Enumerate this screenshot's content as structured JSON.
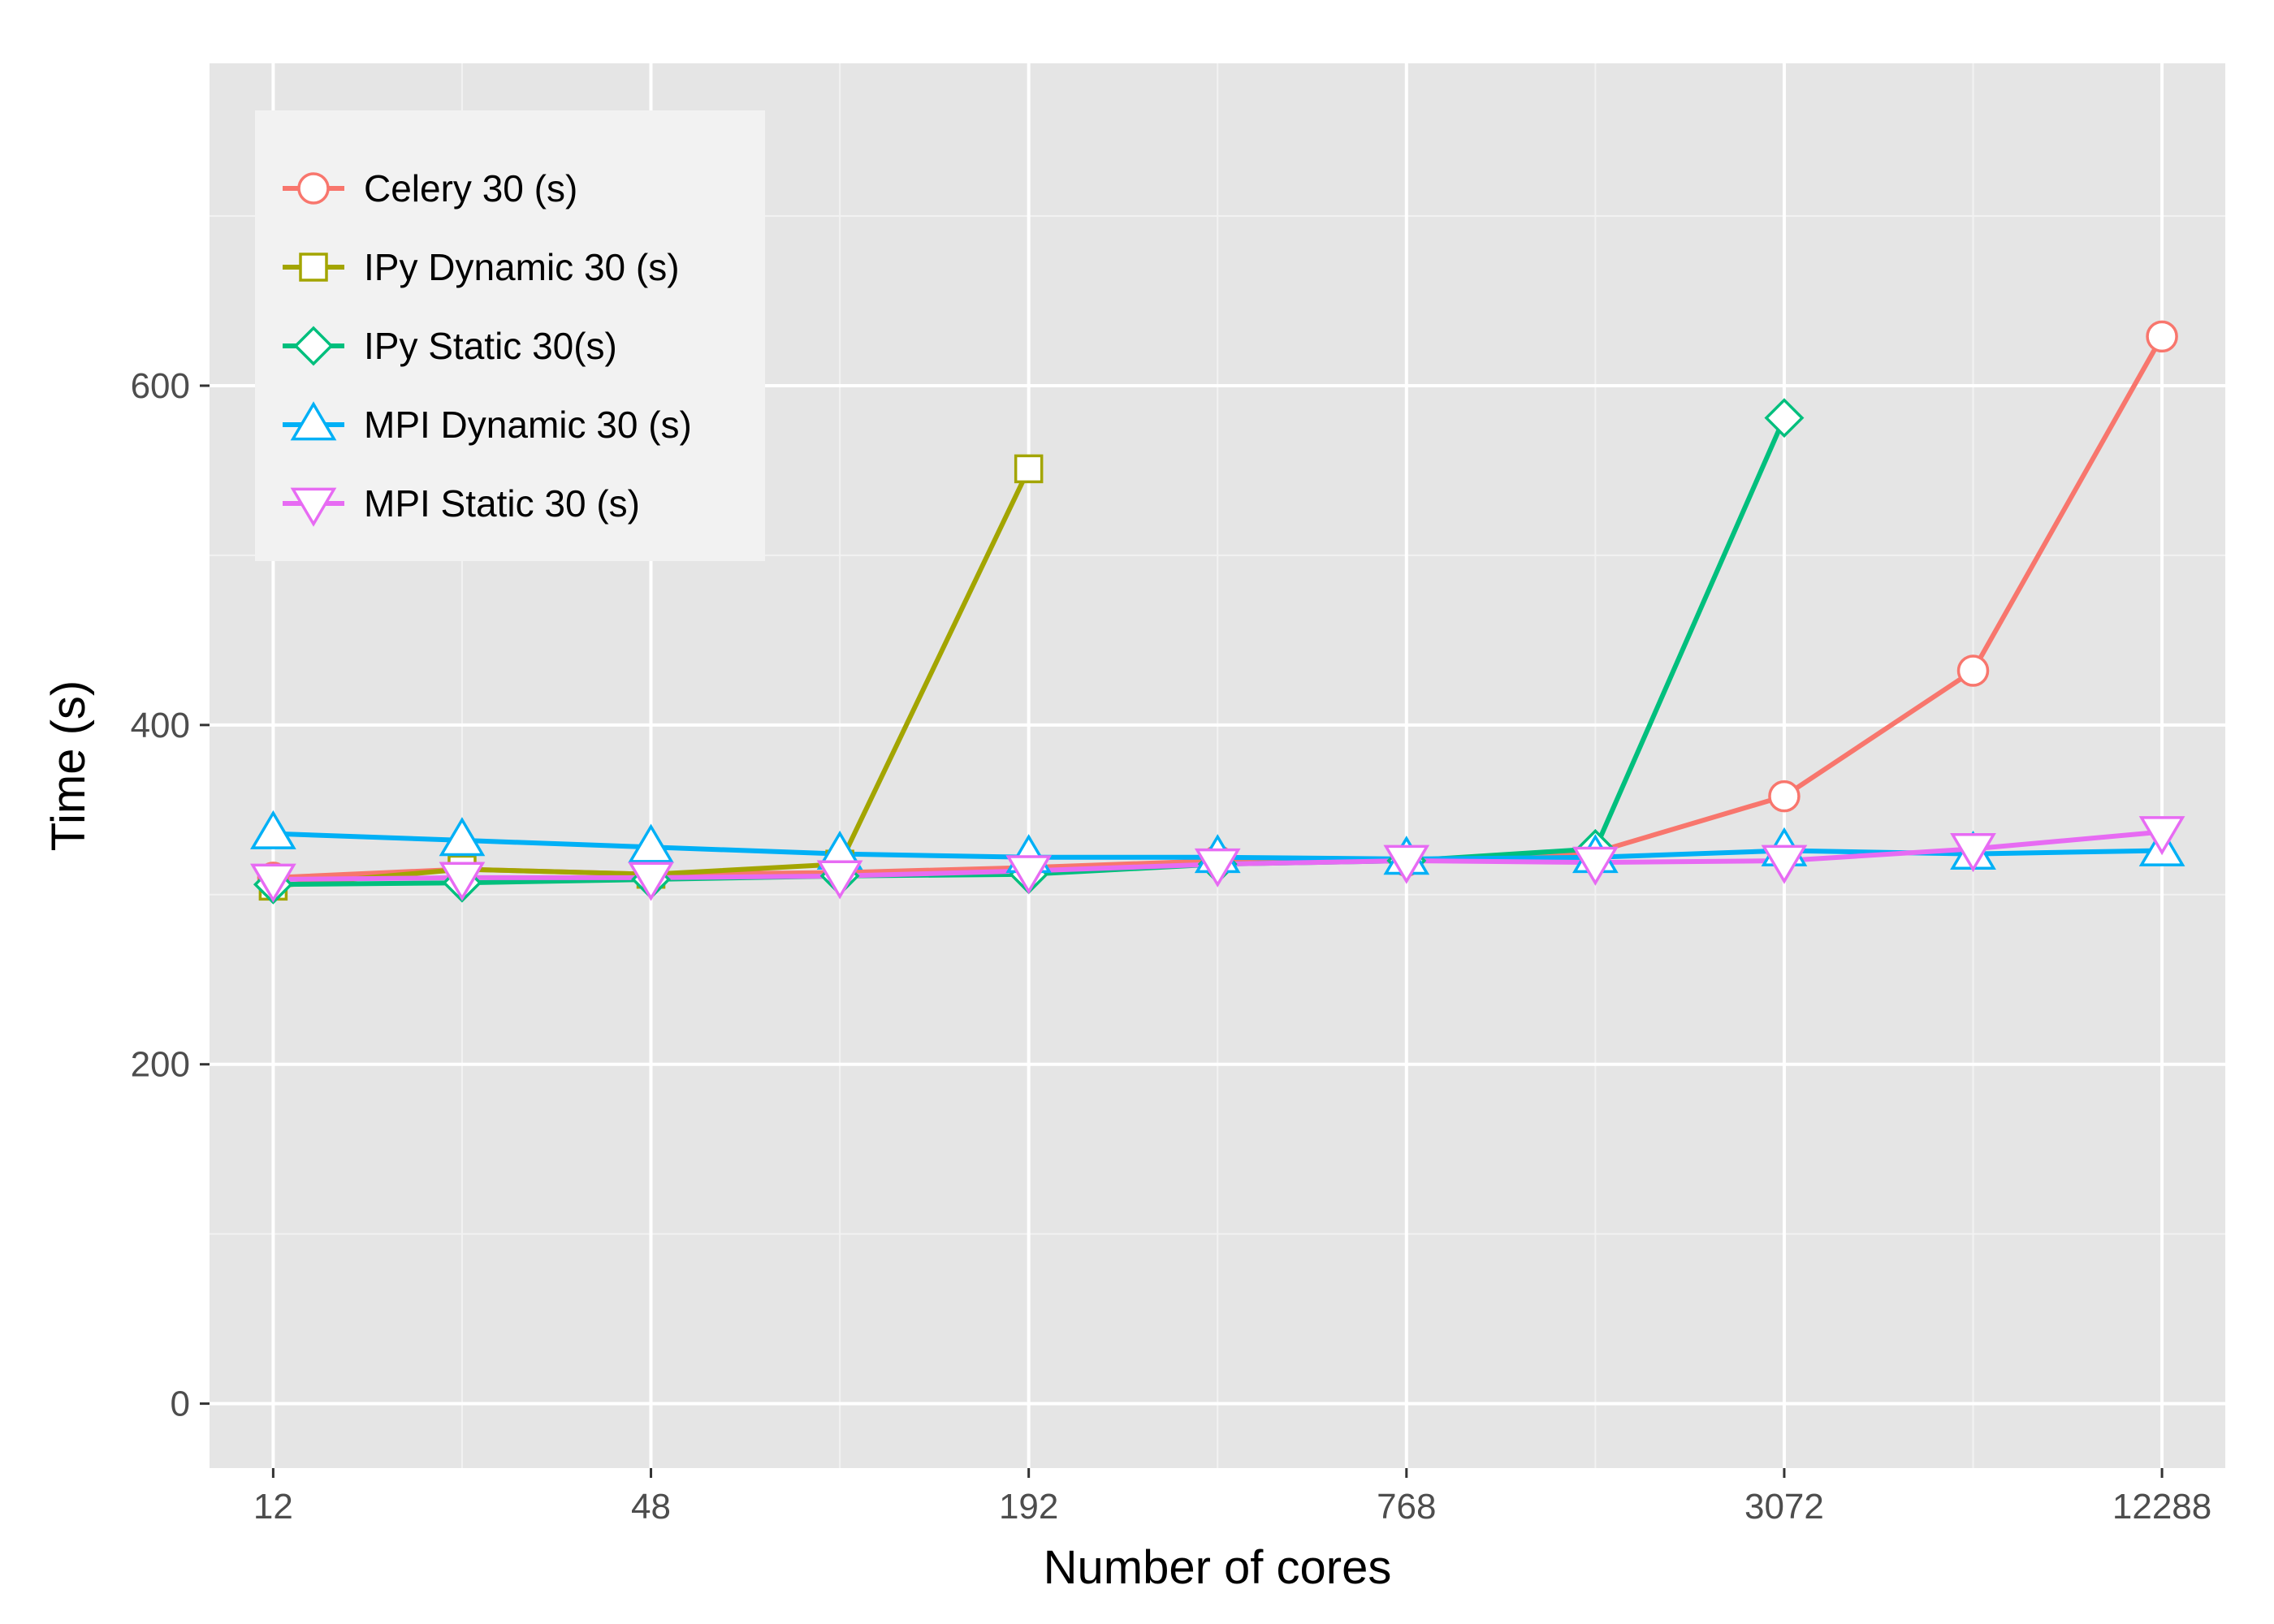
{
  "chart_data": {
    "type": "line",
    "xlabel": "Number of cores",
    "ylabel": "Time (s)",
    "x_scale": "log2",
    "xlim": [
      9.5,
      15500
    ],
    "ylim": [
      -38,
      790
    ],
    "x_ticks": [
      12,
      48,
      192,
      768,
      3072,
      12288
    ],
    "y_ticks": [
      0,
      200,
      400,
      600
    ],
    "grid": true,
    "legend_position": "top-left",
    "series": [
      {
        "name": "Celery 30 (s)",
        "color": "#F8766D",
        "marker": "circle",
        "x": [
          12,
          24,
          48,
          96,
          192,
          384,
          768,
          1536,
          3072,
          6144,
          12288
        ],
        "values": [
          310,
          315,
          312,
          313,
          316,
          320,
          320,
          325,
          358,
          432,
          629
        ]
      },
      {
        "name": "IPy Dynamic 30 (s)",
        "color": "#A3A500",
        "marker": "square",
        "x": [
          12,
          24,
          48,
          96,
          192
        ],
        "values": [
          305,
          315,
          312,
          318,
          551
        ]
      },
      {
        "name": "IPy Static 30(s)",
        "color": "#00BF7D",
        "marker": "diamond",
        "x": [
          12,
          24,
          48,
          96,
          192,
          384,
          768,
          1536,
          3072
        ],
        "values": [
          306,
          307,
          309,
          311,
          312,
          318,
          320,
          327,
          581
        ]
      },
      {
        "name": "MPI Dynamic 30 (s)",
        "color": "#00B0F6",
        "marker": "triangle-up",
        "x": [
          12,
          24,
          48,
          96,
          192,
          384,
          768,
          1536,
          3072,
          6144,
          12288
        ],
        "values": [
          336,
          332,
          328,
          324,
          322,
          322,
          321,
          322,
          326,
          324,
          326
        ]
      },
      {
        "name": "MPI Static 30 (s)",
        "color": "#E76BF3",
        "marker": "triangle-down",
        "x": [
          12,
          24,
          48,
          96,
          192,
          384,
          768,
          1536,
          3072,
          6144,
          12288
        ],
        "values": [
          309,
          310,
          310,
          311,
          314,
          318,
          320,
          319,
          320,
          327,
          337
        ]
      }
    ]
  }
}
